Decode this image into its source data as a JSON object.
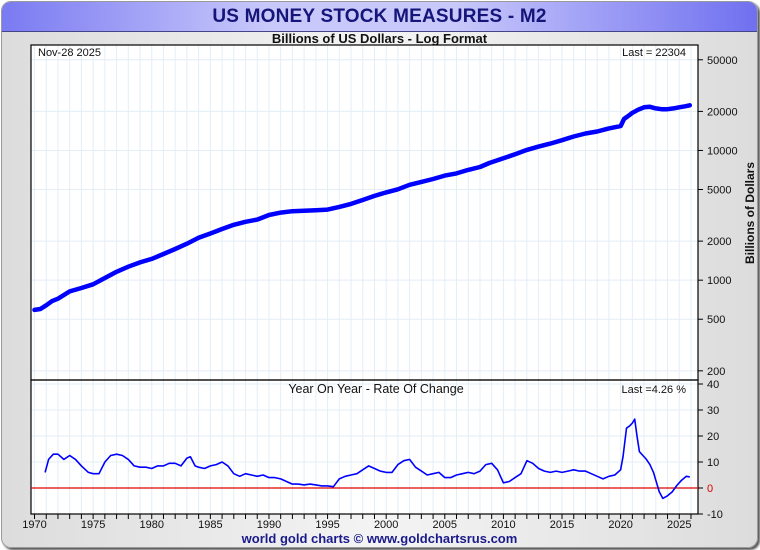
{
  "header": {
    "title": "US MONEY STOCK MEASURES - M2",
    "subtitle": "Billions of US Dollars - Log Format",
    "footer": "world gold charts © www.goldchartsrus.com"
  },
  "chart_data": [
    {
      "type": "line",
      "panel": "top",
      "title": "US MONEY STOCK MEASURES - M2",
      "subtitle": "Billions of US Dollars - Log Format",
      "date_label": "Nov-28  2025",
      "last_label": "Last = 22304",
      "ylabel": "Billions of Dollars",
      "yscale": "log",
      "ylim": [
        170,
        65000
      ],
      "yticks": [
        200,
        500,
        1000,
        2000,
        5000,
        10000,
        20000,
        50000
      ],
      "xlim": [
        1969.7,
        2026.6
      ],
      "grid": true,
      "line_color": "#0000ff",
      "series": [
        {
          "name": "M2",
          "x": [
            1970.0,
            1970.5,
            1971.0,
            1971.5,
            1972.0,
            1973.0,
            1974.0,
            1975.0,
            1976.0,
            1977.0,
            1978.0,
            1979.0,
            1980.0,
            1981.0,
            1982.0,
            1983.0,
            1984.0,
            1985.0,
            1986.0,
            1987.0,
            1988.0,
            1989.0,
            1990.0,
            1991.0,
            1992.0,
            1993.0,
            1994.0,
            1995.0,
            1996.0,
            1997.0,
            1998.0,
            1999.0,
            2000.0,
            2001.0,
            2002.0,
            2003.0,
            2004.0,
            2005.0,
            2006.0,
            2007.0,
            2008.0,
            2008.8,
            2009.5,
            2010.0,
            2011.0,
            2012.0,
            2013.0,
            2014.0,
            2015.0,
            2016.0,
            2017.0,
            2018.0,
            2019.0,
            2020.0,
            2020.3,
            2020.6,
            2021.0,
            2021.5,
            2022.0,
            2022.5,
            2023.0,
            2023.5,
            2024.0,
            2024.5,
            2025.0,
            2025.5,
            2025.9
          ],
          "values": [
            590,
            600,
            640,
            690,
            720,
            820,
            870,
            930,
            1040,
            1160,
            1270,
            1370,
            1460,
            1590,
            1740,
            1910,
            2120,
            2290,
            2480,
            2670,
            2820,
            2930,
            3180,
            3320,
            3400,
            3430,
            3460,
            3500,
            3670,
            3870,
            4150,
            4460,
            4750,
            5020,
            5440,
            5720,
            6020,
            6400,
            6650,
            7080,
            7450,
            8000,
            8400,
            8700,
            9350,
            10100,
            10700,
            11300,
            12000,
            12800,
            13500,
            14000,
            14800,
            15400,
            17500,
            18300,
            19500,
            20600,
            21500,
            21700,
            21100,
            20800,
            20800,
            21100,
            21500,
            21900,
            22304
          ]
        }
      ]
    },
    {
      "type": "line",
      "panel": "bottom",
      "title": "Year On Year - Rate Of Change",
      "last_label": "Last =4.26 %",
      "ylim": [
        -10,
        40
      ],
      "yticks": [
        -10,
        0,
        10,
        20,
        30,
        40
      ],
      "xlim": [
        1969.7,
        2026.6
      ],
      "xticks": [
        1970,
        1975,
        1980,
        1985,
        1990,
        1995,
        2000,
        2005,
        2010,
        2015,
        2020,
        2025
      ],
      "grid": true,
      "zero_line_color": "#e00000",
      "line_color": "#0000ff",
      "series": [
        {
          "name": "M2 YoY %",
          "x": [
            1970.9,
            1971.2,
            1971.6,
            1972.0,
            1972.5,
            1973.0,
            1973.5,
            1974.0,
            1974.6,
            1975.0,
            1975.5,
            1976.0,
            1976.5,
            1977.0,
            1977.5,
            1978.0,
            1978.5,
            1979.0,
            1979.5,
            1980.0,
            1980.5,
            1981.0,
            1981.5,
            1982.0,
            1982.5,
            1983.0,
            1983.3,
            1983.7,
            1984.0,
            1984.5,
            1985.0,
            1985.5,
            1986.0,
            1986.5,
            1987.0,
            1987.5,
            1988.0,
            1988.5,
            1989.0,
            1989.5,
            1990.0,
            1990.5,
            1991.0,
            1991.5,
            1992.0,
            1992.5,
            1993.0,
            1993.5,
            1994.0,
            1994.5,
            1995.0,
            1995.5,
            1996.0,
            1996.5,
            1997.0,
            1997.5,
            1998.0,
            1998.5,
            1999.0,
            1999.5,
            2000.0,
            2000.5,
            2001.0,
            2001.5,
            2002.0,
            2002.5,
            2003.0,
            2003.5,
            2004.0,
            2004.5,
            2005.0,
            2005.5,
            2006.0,
            2006.5,
            2007.0,
            2007.5,
            2008.0,
            2008.5,
            2009.0,
            2009.5,
            2010.0,
            2010.5,
            2011.0,
            2011.5,
            2012.0,
            2012.5,
            2013.0,
            2013.5,
            2014.0,
            2014.5,
            2015.0,
            2015.5,
            2016.0,
            2016.5,
            2017.0,
            2017.5,
            2018.0,
            2018.5,
            2019.0,
            2019.5,
            2020.0,
            2020.2,
            2020.5,
            2020.8,
            2021.0,
            2021.2,
            2021.4,
            2021.6,
            2021.9,
            2022.2,
            2022.5,
            2022.8,
            2023.0,
            2023.3,
            2023.6,
            2024.0,
            2024.4,
            2024.8,
            2025.2,
            2025.6,
            2025.9
          ],
          "values": [
            6,
            11,
            13,
            13,
            11,
            12.5,
            11,
            8.5,
            6,
            5.5,
            5.5,
            10,
            12.5,
            13,
            12.5,
            11,
            8.5,
            8,
            8,
            7.5,
            8.5,
            8.5,
            9.5,
            9.5,
            8.5,
            11.5,
            12,
            8.5,
            8,
            7.5,
            8.5,
            9,
            10,
            8.5,
            5.5,
            4.5,
            5.5,
            5,
            4.5,
            5,
            4,
            4,
            3.5,
            2.5,
            1.5,
            1.5,
            1.2,
            1.5,
            1.2,
            0.8,
            0.8,
            0.5,
            3.5,
            4.5,
            5,
            5.5,
            7,
            8.5,
            7.5,
            6.5,
            6,
            6,
            9,
            10.5,
            11,
            8,
            6.5,
            5,
            5.5,
            6,
            4,
            4,
            5,
            5.5,
            6,
            5.5,
            6.5,
            9,
            9.5,
            7,
            2,
            2.5,
            4,
            5.5,
            10.5,
            9.5,
            7.5,
            6.5,
            6,
            6.5,
            6,
            6.5,
            7,
            6.5,
            6.5,
            5.5,
            4.5,
            3.5,
            4.5,
            5,
            7,
            12,
            23,
            24,
            25,
            26.5,
            20,
            14,
            12.5,
            11,
            9,
            6,
            3,
            -1.5,
            -4,
            -3,
            -1.5,
            1,
            3,
            4.5,
            4.26
          ]
        }
      ]
    }
  ]
}
